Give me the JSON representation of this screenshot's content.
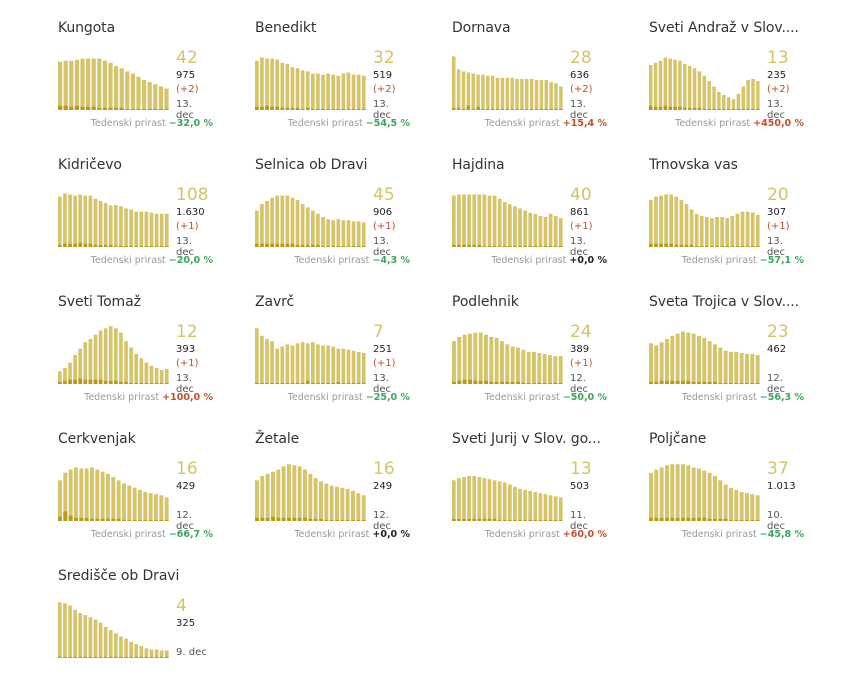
{
  "chart_data": [
    {
      "type": "bar",
      "title": "Kungota",
      "latest": "42",
      "total": "975",
      "delta": "(+2)",
      "date": "13. dec",
      "weekly_label": "Tedenski prirast",
      "weekly_value": "−32,0 %",
      "weekly_sign": "neg",
      "values": [
        45,
        46,
        46,
        47,
        48,
        48,
        48,
        48,
        46,
        44,
        41,
        39,
        36,
        34,
        31,
        28,
        26,
        24,
        22,
        20
      ],
      "secondary": [
        4,
        4,
        3,
        4,
        3,
        3,
        3,
        2,
        2,
        2,
        2,
        2,
        1,
        1,
        1,
        1,
        1,
        1,
        1,
        1
      ]
    },
    {
      "type": "bar",
      "title": "Benedikt",
      "latest": "32",
      "total": "519",
      "delta": "(+2)",
      "date": "13. dec",
      "weekly_label": "Tedenski prirast",
      "weekly_value": "−54,5 %",
      "weekly_sign": "neg",
      "values": [
        46,
        49,
        48,
        48,
        47,
        44,
        43,
        40,
        39,
        37,
        36,
        34,
        34,
        33,
        34,
        33,
        32,
        34,
        35,
        33,
        33,
        32
      ],
      "secondary": [
        3,
        3,
        4,
        3,
        3,
        2,
        2,
        2,
        2,
        1,
        2,
        1,
        1,
        1,
        1,
        1,
        1,
        1,
        1,
        1,
        1,
        1
      ]
    },
    {
      "type": "bar",
      "title": "Dornava",
      "latest": "28",
      "total": "636",
      "delta": "(+2)",
      "date": "13. dec",
      "weekly_label": "Tedenski prirast",
      "weekly_value": "+15,4 %",
      "weekly_sign": "pos",
      "values": [
        50,
        38,
        36,
        35,
        34,
        33,
        33,
        32,
        32,
        30,
        30,
        30,
        30,
        29,
        29,
        29,
        29,
        28,
        28,
        28,
        26,
        25,
        22
      ],
      "secondary": [
        2,
        2,
        1,
        4,
        1,
        3,
        1,
        1,
        1,
        1,
        1,
        1,
        1,
        1,
        1,
        1,
        1,
        1,
        1,
        1,
        1,
        1,
        1
      ]
    },
    {
      "type": "bar",
      "title": "Sveti Andraž v Slov....",
      "latest": "13",
      "total": "235",
      "delta": "(+2)",
      "date": "13. dec",
      "weekly_label": "Tedenski prirast",
      "weekly_value": "+450,0 %",
      "weekly_sign": "pos",
      "values": [
        42,
        44,
        46,
        49,
        48,
        47,
        46,
        43,
        41,
        39,
        36,
        32,
        27,
        22,
        17,
        14,
        12,
        10,
        15,
        22,
        28,
        29,
        27
      ],
      "secondary": [
        4,
        3,
        3,
        4,
        3,
        3,
        3,
        2,
        2,
        2,
        2,
        1,
        1,
        1,
        1,
        1,
        1,
        1,
        1,
        1,
        1,
        1,
        1
      ]
    },
    {
      "type": "bar",
      "title": "Kidričevo",
      "latest": "108",
      "total": "1.630",
      "delta": "(+1)",
      "date": "13. dec",
      "weekly_label": "Tedenski prirast",
      "weekly_value": "−20,0 %",
      "weekly_sign": "neg",
      "values": [
        47,
        50,
        49,
        48,
        49,
        48,
        48,
        45,
        43,
        41,
        39,
        39,
        38,
        36,
        35,
        33,
        33,
        33,
        32,
        31,
        31,
        31
      ],
      "secondary": [
        2,
        3,
        3,
        3,
        4,
        3,
        3,
        2,
        2,
        2,
        2,
        1,
        1,
        1,
        1,
        1,
        1,
        1,
        1,
        1,
        1,
        1
      ]
    },
    {
      "type": "bar",
      "title": "Selnica ob Dravi",
      "latest": "45",
      "total": "906",
      "delta": "(+1)",
      "date": "13. dec",
      "weekly_label": "Tedenski prirast",
      "weekly_value": "−4,3 %",
      "weekly_sign": "neg",
      "values": [
        34,
        40,
        43,
        46,
        48,
        48,
        48,
        46,
        44,
        40,
        37,
        34,
        31,
        28,
        26,
        25,
        26,
        25,
        25,
        24,
        24,
        23
      ],
      "secondary": [
        3,
        3,
        3,
        3,
        3,
        3,
        3,
        3,
        2,
        2,
        2,
        2,
        2,
        1,
        1,
        1,
        1,
        1,
        1,
        1,
        1,
        1
      ]
    },
    {
      "type": "bar",
      "title": "Hajdina",
      "latest": "40",
      "total": "861",
      "delta": "(+1)",
      "date": "13. dec",
      "weekly_label": "Tedenski prirast",
      "weekly_value": "+0,0 %",
      "weekly_sign": "zero",
      "values": [
        48,
        49,
        49,
        49,
        49,
        49,
        49,
        48,
        48,
        45,
        42,
        40,
        38,
        36,
        34,
        32,
        31,
        29,
        28,
        31,
        29,
        27
      ],
      "secondary": [
        2,
        2,
        2,
        2,
        2,
        2,
        1,
        1,
        1,
        1,
        1,
        1,
        1,
        1,
        1,
        1,
        1,
        1,
        1,
        1,
        1,
        1
      ]
    },
    {
      "type": "bar",
      "title": "Trnovska vas",
      "latest": "20",
      "total": "307",
      "delta": "(+1)",
      "date": "13. dec",
      "weekly_label": "Tedenski prirast",
      "weekly_value": "−57,1 %",
      "weekly_sign": "neg",
      "values": [
        44,
        47,
        48,
        49,
        49,
        47,
        44,
        40,
        35,
        31,
        29,
        28,
        27,
        28,
        28,
        27,
        29,
        31,
        33,
        33,
        32,
        30
      ],
      "secondary": [
        3,
        3,
        3,
        3,
        3,
        2,
        2,
        2,
        2,
        1,
        1,
        1,
        1,
        1,
        1,
        1,
        1,
        1,
        1,
        1,
        1,
        1
      ]
    },
    {
      "type": "bar",
      "title": "Sveti Tomaž",
      "latest": "12",
      "total": "393",
      "delta": "(+1)",
      "date": "13. dec",
      "weekly_label": "Tedenski prirast",
      "weekly_value": "+100,0 %",
      "weekly_sign": "pos",
      "values": [
        12,
        15,
        20,
        27,
        33,
        39,
        42,
        46,
        50,
        52,
        54,
        52,
        48,
        40,
        34,
        28,
        24,
        20,
        17,
        15,
        13,
        14
      ],
      "secondary": [
        2,
        3,
        4,
        4,
        5,
        4,
        4,
        4,
        4,
        3,
        3,
        3,
        2,
        2,
        1,
        1,
        1,
        1,
        1,
        1,
        1,
        1
      ]
    },
    {
      "type": "bar",
      "title": "Zavrč",
      "latest": "7",
      "total": "251",
      "delta": "(+1)",
      "date": "13. dec",
      "weekly_label": "Tedenski prirast",
      "weekly_value": "−25,0 %",
      "weekly_sign": "neg",
      "values": [
        52,
        45,
        42,
        40,
        33,
        35,
        37,
        36,
        38,
        39,
        38,
        39,
        37,
        36,
        36,
        35,
        33,
        33,
        32,
        31,
        30,
        29
      ],
      "secondary": [
        1,
        1,
        1,
        1,
        1,
        1,
        1,
        1,
        1,
        1,
        3,
        1,
        1,
        1,
        1,
        1,
        2,
        1,
        1,
        1,
        1,
        1
      ]
    },
    {
      "type": "bar",
      "title": "Podlehnik",
      "latest": "24",
      "total": "389",
      "delta": "(+1)",
      "date": "12. dec",
      "weekly_label": "Tedenski prirast",
      "weekly_value": "−50,0 %",
      "weekly_sign": "neg",
      "values": [
        40,
        44,
        46,
        47,
        48,
        48,
        46,
        44,
        43,
        40,
        37,
        35,
        34,
        32,
        30,
        30,
        29,
        28,
        27,
        26,
        26
      ],
      "secondary": [
        2,
        3,
        4,
        4,
        3,
        3,
        3,
        2,
        2,
        2,
        2,
        2,
        2,
        1,
        1,
        1,
        1,
        1,
        1,
        1,
        1
      ]
    },
    {
      "type": "bar",
      "title": "Sveta Trojica v Slov....",
      "latest": "23",
      "total": "462",
      "delta": "",
      "date": "12. dec",
      "weekly_label": "Tedenski prirast",
      "weekly_value": "−56,3 %",
      "weekly_sign": "neg",
      "values": [
        38,
        36,
        39,
        42,
        45,
        47,
        49,
        48,
        47,
        45,
        43,
        40,
        37,
        34,
        31,
        30,
        30,
        29,
        28,
        28,
        27
      ],
      "secondary": [
        2,
        2,
        3,
        3,
        3,
        3,
        3,
        3,
        2,
        2,
        2,
        2,
        2,
        1,
        1,
        1,
        1,
        1,
        1,
        1,
        1
      ]
    },
    {
      "type": "bar",
      "title": "Cerkvenjak",
      "latest": "16",
      "total": "429",
      "delta": "",
      "date": "12. dec",
      "weekly_label": "Tedenski prirast",
      "weekly_value": "−66,7 %",
      "weekly_sign": "neg",
      "values": [
        38,
        45,
        48,
        50,
        49,
        49,
        50,
        48,
        46,
        44,
        41,
        38,
        35,
        33,
        31,
        29,
        27,
        26,
        25,
        24,
        22
      ],
      "secondary": [
        4,
        9,
        5,
        3,
        3,
        3,
        2,
        2,
        2,
        2,
        2,
        2,
        1,
        1,
        1,
        1,
        1,
        1,
        1,
        1,
        1
      ]
    },
    {
      "type": "bar",
      "title": "Žetale",
      "latest": "16",
      "total": "249",
      "delta": "",
      "date": "12. dec",
      "weekly_label": "Tedenski prirast",
      "weekly_value": "+0,0 %",
      "weekly_sign": "zero",
      "values": [
        38,
        42,
        44,
        46,
        48,
        51,
        53,
        52,
        51,
        48,
        44,
        40,
        37,
        35,
        33,
        32,
        31,
        30,
        28,
        26,
        24
      ],
      "secondary": [
        3,
        3,
        3,
        4,
        3,
        3,
        3,
        3,
        3,
        3,
        2,
        2,
        2,
        1,
        1,
        1,
        1,
        1,
        1,
        1,
        1
      ]
    },
    {
      "type": "bar",
      "title": "Sveti Jurij v Slov. go...",
      "latest": "13",
      "total": "503",
      "delta": "",
      "date": "11. dec",
      "weekly_label": "Tedenski prirast",
      "weekly_value": "+60,0 %",
      "weekly_sign": "pos",
      "values": [
        38,
        40,
        41,
        42,
        42,
        41,
        40,
        39,
        38,
        37,
        36,
        34,
        32,
        30,
        29,
        28,
        27,
        26,
        25,
        24,
        23,
        22
      ],
      "secondary": [
        2,
        2,
        2,
        2,
        2,
        2,
        2,
        2,
        2,
        1,
        1,
        1,
        1,
        1,
        1,
        1,
        1,
        1,
        1,
        1,
        1,
        1
      ]
    },
    {
      "type": "bar",
      "title": "Poljčane",
      "latest": "37",
      "total": "1.013",
      "delta": "",
      "date": "10. dec",
      "weekly_label": "Tedenski prirast",
      "weekly_value": "−45,8 %",
      "weekly_sign": "neg",
      "values": [
        45,
        48,
        50,
        52,
        53,
        53,
        53,
        52,
        50,
        49,
        47,
        45,
        42,
        38,
        34,
        31,
        29,
        27,
        26,
        25,
        24
      ],
      "secondary": [
        3,
        3,
        3,
        3,
        3,
        3,
        3,
        3,
        3,
        3,
        3,
        2,
        2,
        2,
        2,
        1,
        1,
        1,
        1,
        1,
        1
      ]
    },
    {
      "type": "bar",
      "title": "Središče ob Dravi",
      "latest": "4",
      "total": "325",
      "delta": "",
      "date": "9. dec",
      "weekly_label": "",
      "weekly_value": "",
      "weekly_sign": "",
      "values": [
        52,
        51,
        49,
        45,
        42,
        40,
        38,
        36,
        33,
        29,
        26,
        23,
        20,
        18,
        15,
        13,
        11,
        9,
        8,
        8,
        7,
        7
      ],
      "secondary": [
        1,
        1,
        1,
        1,
        1,
        1,
        1,
        1,
        1,
        1,
        1,
        1,
        1,
        1,
        1,
        1,
        1,
        1,
        1,
        1,
        1,
        1
      ]
    }
  ],
  "colors": {
    "bar": "#d6c46a",
    "bar_secondary": "#b79a1a",
    "latest": "#d4c36a",
    "negative": "#3aa65a",
    "positive": "#c0502d",
    "neutral": "#222222"
  }
}
